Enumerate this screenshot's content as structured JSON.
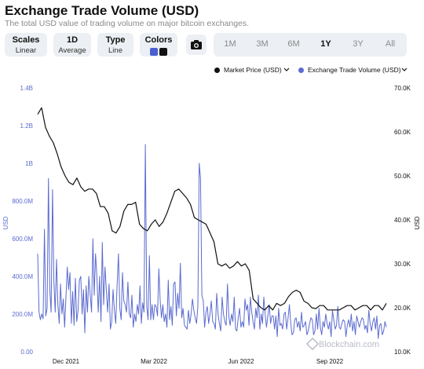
{
  "header": {
    "title": "Exchange Trade Volume (USD)",
    "subtitle": "The total USD value of trading volume on major bitcoin exchanges."
  },
  "controls": {
    "scales": {
      "label": "Scales",
      "value": "Linear"
    },
    "interval": {
      "label": "1D",
      "value": "Average"
    },
    "type": {
      "label": "Type",
      "value": "Line"
    },
    "colors": {
      "label": "Colors",
      "swatch1": "#4a5fd0",
      "swatch2": "#111111"
    },
    "camera_icon": "camera-icon",
    "ranges": [
      "1M",
      "3M",
      "6M",
      "1Y",
      "3Y",
      "All"
    ],
    "active_range": "1Y"
  },
  "legend": {
    "market_price": "Market Price (USD)",
    "volume": "Exchange Trade Volume (USD)"
  },
  "watermark": "Blockchain.com",
  "chart_data": {
    "type": "line",
    "x_tick_labels": [
      "Dec 2021",
      "Mar 2022",
      "Jun 2022",
      "Sep 2022"
    ],
    "y_left": {
      "label": "USD",
      "ticks": [
        "0.00",
        "200.0M",
        "400.0M",
        "600.0M",
        "800.0M",
        "1B",
        "1.2B",
        "1.4B"
      ],
      "range": [
        0,
        1400000000
      ]
    },
    "y_right": {
      "label": "USD",
      "ticks": [
        "10.0K",
        "20.0K",
        "30.0K",
        "40.0K",
        "50.0K",
        "60.0K",
        "70.0K"
      ],
      "range": [
        10000,
        70000
      ]
    },
    "colors": {
      "volume": "#5b6bd0",
      "price": "#111111"
    },
    "series": [
      {
        "name": "Market Price (USD)",
        "axis": "right",
        "values": [
          64000,
          65500,
          61000,
          59000,
          57500,
          55000,
          52000,
          50000,
          48500,
          48000,
          49500,
          47500,
          46500,
          47000,
          47000,
          46000,
          43000,
          43000,
          41500,
          37500,
          37000,
          38500,
          42000,
          43500,
          43500,
          44000,
          39000,
          38000,
          37500,
          39000,
          40000,
          38500,
          39500,
          41500,
          44000,
          46500,
          47000,
          46000,
          45000,
          43500,
          40500,
          40000,
          39500,
          39000,
          37000,
          35000,
          30000,
          29500,
          30000,
          29000,
          29500,
          30500,
          29500,
          30000,
          28500,
          22000,
          21000,
          20000,
          19500,
          20500,
          19500,
          21000,
          20500,
          21000,
          22500,
          23500,
          24000,
          23500,
          21500,
          21000,
          20000,
          19800,
          20500,
          20500,
          19500,
          19500,
          19500,
          19500,
          20000,
          20500,
          20500,
          19500,
          20000,
          20500,
          20500,
          19500,
          20500,
          20500,
          19500,
          21000
        ]
      },
      {
        "name": "Exchange Trade Volume (USD)",
        "axis": "left",
        "values": [
          520,
          210,
          170,
          200,
          175,
          650,
          190,
          230,
          920,
          330,
          210,
          860,
          380,
          210,
          490,
          250,
          150,
          360,
          200,
          280,
          130,
          290,
          450,
          330,
          420,
          150,
          320,
          140,
          390,
          160,
          220,
          380,
          400,
          200,
          330,
          100,
          350,
          210,
          400,
          300,
          210,
          600,
          300,
          520,
          400,
          210,
          400,
          160,
          580,
          250,
          450,
          330,
          210,
          360,
          120,
          160,
          330,
          220,
          150,
          350,
          520,
          230,
          170,
          420,
          270,
          250,
          210,
          370,
          200,
          180,
          300,
          130,
          200,
          160,
          250,
          200,
          350,
          150,
          260,
          210,
          1100,
          240,
          170,
          510,
          170,
          250,
          170,
          250,
          240,
          190,
          440,
          270,
          180,
          250,
          160,
          200,
          130,
          380,
          170,
          240,
          140,
          360,
          370,
          190,
          310,
          230,
          470,
          180,
          230,
          140,
          130,
          120,
          220,
          150,
          200,
          280,
          220,
          180,
          150,
          240,
          1000,
          920,
          300,
          270,
          130,
          210,
          240,
          150,
          200,
          270,
          160,
          150,
          120,
          310,
          200,
          150,
          110,
          290,
          200,
          160,
          140,
          360,
          190,
          140,
          200,
          160,
          290,
          120,
          110,
          180,
          230,
          130,
          160,
          130,
          280,
          220,
          250,
          140,
          290,
          210,
          160,
          120,
          230,
          180,
          300,
          120,
          200,
          150,
          290,
          200,
          130,
          190,
          250,
          150,
          190,
          190,
          120,
          190,
          80,
          230,
          140,
          150,
          120,
          200,
          210,
          120,
          180,
          250,
          150,
          90,
          100,
          170,
          180,
          130,
          160,
          110,
          210,
          130,
          140,
          160,
          90,
          110,
          150,
          180,
          170,
          90,
          110,
          200,
          120,
          230,
          130,
          90,
          160,
          130,
          200,
          150,
          120,
          160,
          80,
          220,
          170,
          120,
          140,
          240,
          130,
          120,
          150,
          170,
          160,
          80,
          140,
          170,
          130,
          200,
          110,
          160,
          90,
          190,
          160,
          130,
          160,
          180,
          170,
          120,
          140,
          100,
          220,
          150,
          110,
          160,
          180,
          120,
          190,
          70,
          140,
          150,
          90,
          110,
          160,
          130
        ]
      }
    ],
    "volume_unit": "million USD"
  }
}
